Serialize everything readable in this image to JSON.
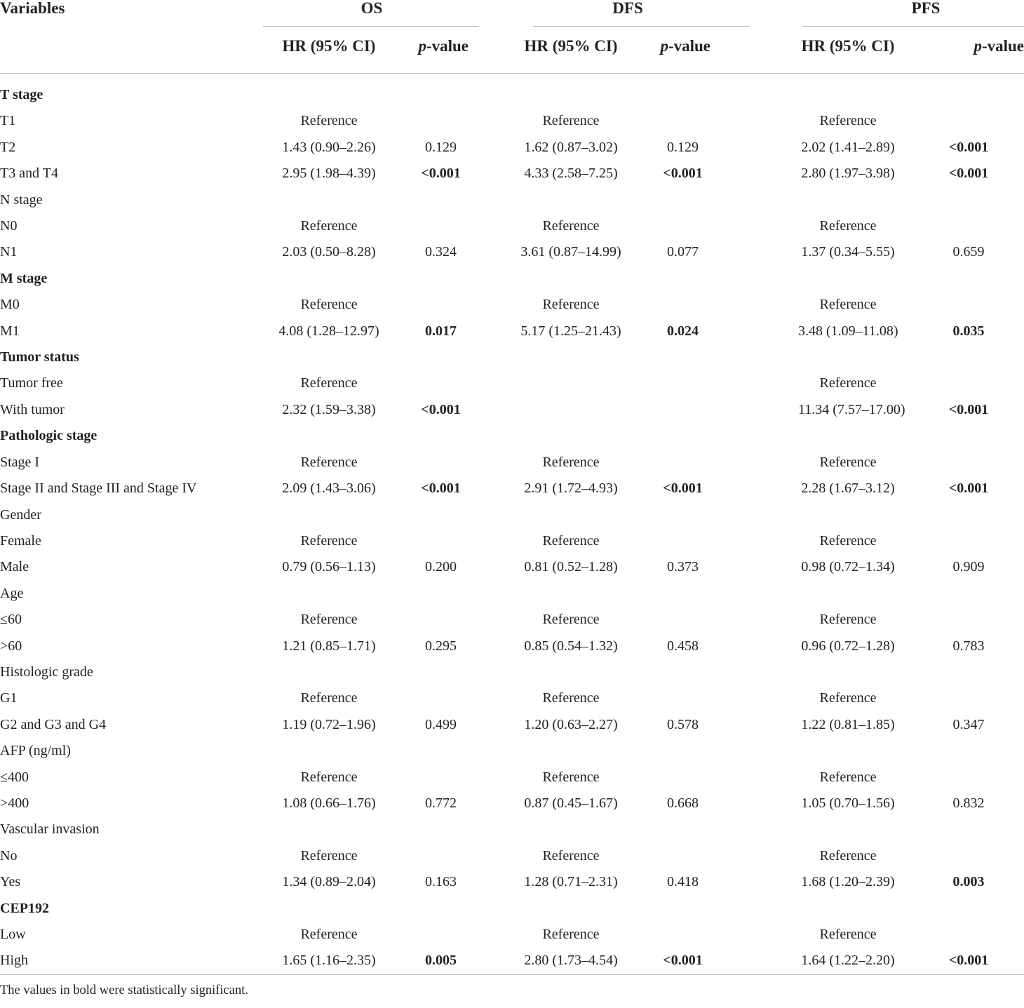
{
  "header": {
    "variables": "Variables",
    "groups": [
      "OS",
      "DFS",
      "PFS"
    ],
    "hr_label": "HR (95% CI)",
    "p_label_italic": "p",
    "p_label_rest": "-value"
  },
  "rows": [
    {
      "label": "T stage",
      "section": true,
      "cells": [
        "",
        "",
        "",
        "",
        "",
        ""
      ],
      "sig": [
        false,
        false,
        false
      ]
    },
    {
      "label": "T1",
      "section": false,
      "cells": [
        "Reference",
        "",
        "Reference",
        "",
        "Reference",
        ""
      ],
      "sig": [
        false,
        false,
        false
      ]
    },
    {
      "label": "T2",
      "section": false,
      "cells": [
        "1.43 (0.90–2.26)",
        "0.129",
        "1.62 (0.87–3.02)",
        "0.129",
        "2.02 (1.41–2.89)",
        "<0.001"
      ],
      "sig": [
        false,
        false,
        true
      ]
    },
    {
      "label": "T3 and T4",
      "section": false,
      "cells": [
        "2.95 (1.98–4.39)",
        "<0.001",
        "4.33 (2.58–7.25)",
        "<0.001",
        "2.80 (1.97–3.98)",
        "<0.001"
      ],
      "sig": [
        true,
        true,
        true
      ]
    },
    {
      "label": "N stage",
      "section": false,
      "cells": [
        "",
        "",
        "",
        "",
        "",
        ""
      ],
      "sig": [
        false,
        false,
        false
      ]
    },
    {
      "label": "N0",
      "section": false,
      "cells": [
        "Reference",
        "",
        "Reference",
        "",
        "Reference",
        ""
      ],
      "sig": [
        false,
        false,
        false
      ]
    },
    {
      "label": "N1",
      "section": false,
      "cells": [
        "2.03 (0.50–8.28)",
        "0.324",
        "3.61 (0.87–14.99)",
        "0.077",
        "1.37 (0.34–5.55)",
        "0.659"
      ],
      "sig": [
        false,
        false,
        false
      ]
    },
    {
      "label": "M stage",
      "section": true,
      "cells": [
        "",
        "",
        "",
        "",
        "",
        ""
      ],
      "sig": [
        false,
        false,
        false
      ]
    },
    {
      "label": "M0",
      "section": false,
      "cells": [
        "Reference",
        "",
        "Reference",
        "",
        "Reference",
        ""
      ],
      "sig": [
        false,
        false,
        false
      ]
    },
    {
      "label": "M1",
      "section": false,
      "cells": [
        "4.08 (1.28–12.97)",
        "0.017",
        "5.17 (1.25–21.43)",
        "0.024",
        "3.48 (1.09–11.08)",
        "0.035"
      ],
      "sig": [
        true,
        true,
        true
      ]
    },
    {
      "label": "Tumor status",
      "section": true,
      "cells": [
        "",
        "",
        "",
        "",
        "",
        ""
      ],
      "sig": [
        false,
        false,
        false
      ]
    },
    {
      "label": "Tumor free",
      "section": false,
      "cells": [
        "Reference",
        "",
        "",
        "",
        "Reference",
        ""
      ],
      "sig": [
        false,
        false,
        false
      ]
    },
    {
      "label": "With tumor",
      "section": false,
      "cells": [
        "2.32 (1.59–3.38)",
        "<0.001",
        "",
        "",
        "11.34 (7.57–17.00)",
        "<0.001"
      ],
      "sig": [
        true,
        false,
        true
      ]
    },
    {
      "label": "Pathologic stage",
      "section": true,
      "cells": [
        "",
        "",
        "",
        "",
        "",
        ""
      ],
      "sig": [
        false,
        false,
        false
      ]
    },
    {
      "label": "Stage I",
      "section": false,
      "cells": [
        "Reference",
        "",
        "Reference",
        "",
        "Reference",
        ""
      ],
      "sig": [
        false,
        false,
        false
      ]
    },
    {
      "label": "Stage II and Stage III and Stage IV",
      "section": false,
      "cells": [
        "2.09 (1.43–3.06)",
        "<0.001",
        "2.91 (1.72–4.93)",
        "<0.001",
        "2.28 (1.67–3.12)",
        "<0.001"
      ],
      "sig": [
        true,
        true,
        true
      ]
    },
    {
      "label": "Gender",
      "section": false,
      "cells": [
        "",
        "",
        "",
        "",
        "",
        ""
      ],
      "sig": [
        false,
        false,
        false
      ]
    },
    {
      "label": "Female",
      "section": false,
      "cells": [
        "Reference",
        "",
        "Reference",
        "",
        "Reference",
        ""
      ],
      "sig": [
        false,
        false,
        false
      ]
    },
    {
      "label": "Male",
      "section": false,
      "cells": [
        "0.79 (0.56–1.13)",
        "0.200",
        "0.81 (0.52–1.28)",
        "0.373",
        "0.98 (0.72–1.34)",
        "0.909"
      ],
      "sig": [
        false,
        false,
        false
      ]
    },
    {
      "label": "Age",
      "section": false,
      "cells": [
        "",
        "",
        "",
        "",
        "",
        ""
      ],
      "sig": [
        false,
        false,
        false
      ]
    },
    {
      "label": "≤60",
      "section": false,
      "cells": [
        "Reference",
        "",
        "Reference",
        "",
        "Reference",
        ""
      ],
      "sig": [
        false,
        false,
        false
      ]
    },
    {
      "label": ">60",
      "section": false,
      "cells": [
        "1.21 (0.85–1.71)",
        "0.295",
        "0.85 (0.54–1.32)",
        "0.458",
        "0.96 (0.72–1.28)",
        "0.783"
      ],
      "sig": [
        false,
        false,
        false
      ]
    },
    {
      "label": "Histologic grade",
      "section": false,
      "cells": [
        "",
        "",
        "",
        "",
        "",
        ""
      ],
      "sig": [
        false,
        false,
        false
      ]
    },
    {
      "label": "G1",
      "section": false,
      "cells": [
        "Reference",
        "",
        "Reference",
        "",
        "Reference",
        ""
      ],
      "sig": [
        false,
        false,
        false
      ]
    },
    {
      "label": "G2 and G3 and G4",
      "section": false,
      "cells": [
        "1.19 (0.72–1.96)",
        "0.499",
        "1.20 (0.63–2.27)",
        "0.578",
        "1.22 (0.81–1.85)",
        "0.347"
      ],
      "sig": [
        false,
        false,
        false
      ]
    },
    {
      "label": "AFP (ng/ml)",
      "section": false,
      "cells": [
        "",
        "",
        "",
        "",
        "",
        ""
      ],
      "sig": [
        false,
        false,
        false
      ]
    },
    {
      "label": "≤400",
      "section": false,
      "cells": [
        "Reference",
        "",
        "Reference",
        "",
        "Reference",
        ""
      ],
      "sig": [
        false,
        false,
        false
      ]
    },
    {
      "label": ">400",
      "section": false,
      "cells": [
        "1.08 (0.66–1.76)",
        "0.772",
        "0.87 (0.45–1.67)",
        "0.668",
        "1.05 (0.70–1.56)",
        "0.832"
      ],
      "sig": [
        false,
        false,
        false
      ]
    },
    {
      "label": "Vascular invasion",
      "section": false,
      "cells": [
        "",
        "",
        "",
        "",
        "",
        ""
      ],
      "sig": [
        false,
        false,
        false
      ]
    },
    {
      "label": "No",
      "section": false,
      "cells": [
        "Reference",
        "",
        "Reference",
        "",
        "Reference",
        ""
      ],
      "sig": [
        false,
        false,
        false
      ]
    },
    {
      "label": "Yes",
      "section": false,
      "cells": [
        "1.34 (0.89–2.04)",
        "0.163",
        "1.28 (0.71–2.31)",
        "0.418",
        "1.68 (1.20–2.39)",
        "0.003"
      ],
      "sig": [
        false,
        false,
        true
      ]
    },
    {
      "label": "CEP192",
      "section": true,
      "cells": [
        "",
        "",
        "",
        "",
        "",
        ""
      ],
      "sig": [
        false,
        false,
        false
      ]
    },
    {
      "label": "Low",
      "section": false,
      "cells": [
        "Reference",
        "",
        "Reference",
        "",
        "Reference",
        ""
      ],
      "sig": [
        false,
        false,
        false
      ]
    },
    {
      "label": "High",
      "section": false,
      "cells": [
        "1.65 (1.16–2.35)",
        "0.005",
        "2.80 (1.73–4.54)",
        "<0.001",
        "1.64 (1.22–2.20)",
        "<0.001"
      ],
      "sig": [
        true,
        true,
        true
      ]
    }
  ],
  "footnote": "The values in bold were statistically significant."
}
